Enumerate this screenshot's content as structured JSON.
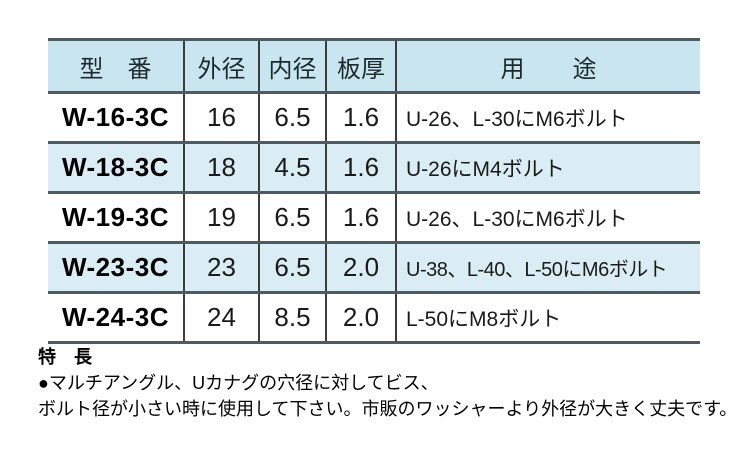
{
  "table": {
    "headers": {
      "model": "型　番",
      "outer_diameter": "外径",
      "inner_diameter": "内径",
      "thickness": "板厚",
      "usage": "用　　途"
    },
    "rows": [
      {
        "model": "W-16-3C",
        "outer_diameter": "16",
        "inner_diameter": "6.5",
        "thickness": "1.6",
        "usage": "U-26、L-30にM6ボルト"
      },
      {
        "model": "W-18-3C",
        "outer_diameter": "18",
        "inner_diameter": "4.5",
        "thickness": "1.6",
        "usage": "U-26にM4ボルト"
      },
      {
        "model": "W-19-3C",
        "outer_diameter": "19",
        "inner_diameter": "6.5",
        "thickness": "1.6",
        "usage": "U-26、L-30にM6ボルト"
      },
      {
        "model": "W-23-3C",
        "outer_diameter": "23",
        "inner_diameter": "6.5",
        "thickness": "2.0",
        "usage": "U-38、L-40、L-50にM6ボルト"
      },
      {
        "model": "W-24-3C",
        "outer_diameter": "24",
        "inner_diameter": "8.5",
        "thickness": "2.0",
        "usage": "L-50にM8ボルト"
      }
    ]
  },
  "features": {
    "heading": "特　長",
    "line1": "●マルチアングル、Uカナグの穴径に対してビス、",
    "line2": "ボルト径が小さい時に使用して下さい。市販のワッシャーより外径が大きく丈夫です。"
  },
  "colors": {
    "header_bg": "#c9e6f0",
    "alt_row_bg": "#daedf5",
    "rule": "#4d5c63",
    "column_rule": "#3c3c3c"
  }
}
